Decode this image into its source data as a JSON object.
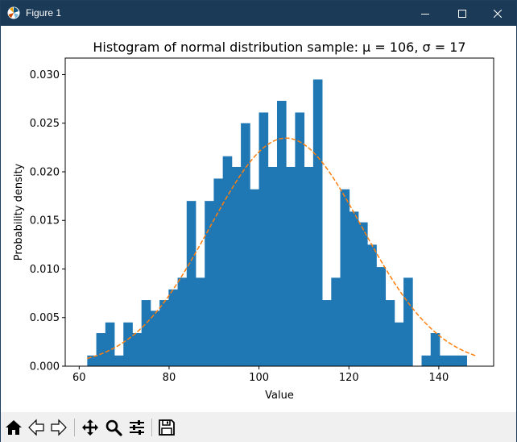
{
  "window": {
    "title": "Figure 1"
  },
  "toolbar": {
    "buttons": [
      {
        "name": "home-button",
        "icon": "home-icon"
      },
      {
        "name": "back-button",
        "icon": "back-arrow-icon"
      },
      {
        "name": "forward-button",
        "icon": "forward-arrow-icon"
      },
      {
        "name": "pan-button",
        "icon": "move-icon"
      },
      {
        "name": "zoom-button",
        "icon": "zoom-icon"
      },
      {
        "name": "configure-subplots-button",
        "icon": "sliders-icon"
      },
      {
        "name": "save-button",
        "icon": "save-icon"
      }
    ]
  },
  "chart_data": {
    "type": "bar",
    "title": "Histogram of normal distribution sample: μ = 106, σ = 17",
    "xlabel": "Value",
    "ylabel": "Probability density",
    "xlim": [
      56.9,
      152.2
    ],
    "ylim": [
      0,
      0.0317
    ],
    "xticks": [
      60,
      80,
      100,
      120,
      140
    ],
    "yticks": [
      0.0,
      0.005,
      0.01,
      0.015,
      0.02,
      0.025,
      0.03
    ],
    "ytick_labels": [
      "0.000",
      "0.005",
      "0.010",
      "0.015",
      "0.020",
      "0.025",
      "0.030"
    ],
    "bin_edges": [
      61.8,
      63.81,
      65.82,
      67.83,
      69.84,
      71.85,
      73.86,
      75.87,
      77.88,
      79.89,
      81.9,
      83.91,
      85.92,
      87.93,
      89.94,
      91.95,
      93.96,
      95.97,
      97.98,
      99.99,
      102.0,
      104.01,
      106.02,
      108.03,
      110.04,
      112.05,
      114.06,
      116.07,
      118.08,
      120.09,
      122.1,
      124.11,
      126.12,
      128.13,
      130.14,
      132.15,
      134.16,
      136.17,
      138.18,
      140.19,
      142.2,
      144.21,
      146.22,
      148.23
    ],
    "values": [
      0.0011,
      0.0034,
      0.0045,
      0.0011,
      0.0045,
      0.0034,
      0.0068,
      0.0057,
      0.0068,
      0.0079,
      0.0091,
      0.017,
      0.0091,
      0.017,
      0.0193,
      0.0216,
      0.0205,
      0.025,
      0.0182,
      0.0261,
      0.0205,
      0.0273,
      0.0205,
      0.0261,
      0.0205,
      0.0295,
      0.0068,
      0.0091,
      0.0182,
      0.0159,
      0.0148,
      0.0125,
      0.0102,
      0.0068,
      0.0045,
      0.0091,
      0.0,
      0.0011,
      0.0034,
      0.0011,
      0.0011,
      0.0011,
      0.0
    ],
    "series": [
      {
        "type": "bar",
        "color": "#1f77b4"
      },
      {
        "type": "line",
        "style": "dashed",
        "color": "#ff7f0e",
        "mu": 106,
        "sigma": 17
      }
    ],
    "grid": false
  }
}
